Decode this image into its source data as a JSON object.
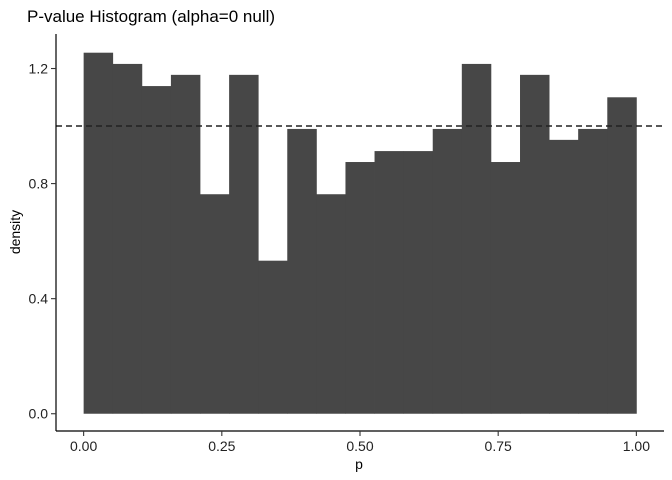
{
  "chart_data": {
    "type": "bar",
    "subtype": "histogram",
    "title": "P-value Histogram (alpha=0 null)",
    "xlabel": "p",
    "ylabel": "density",
    "xlim": [
      -0.05,
      1.05
    ],
    "ylim": [
      -0.06,
      1.32
    ],
    "xticks": [
      0.0,
      0.25,
      0.5,
      0.75,
      1.0
    ],
    "xtick_labels": [
      "0.00",
      "0.25",
      "0.50",
      "0.75",
      "1.00"
    ],
    "yticks": [
      0.0,
      0.4,
      0.8,
      1.2
    ],
    "ytick_labels": [
      "0.0",
      "0.4",
      "0.8",
      "1.2"
    ],
    "bin_edges": [
      0.0,
      0.0526,
      0.1053,
      0.1579,
      0.2105,
      0.2632,
      0.3158,
      0.3684,
      0.4211,
      0.4737,
      0.5263,
      0.5789,
      0.6316,
      0.6842,
      0.7368,
      0.7895,
      0.8421,
      0.8947,
      0.9474,
      1.0
    ],
    "values": [
      1.255,
      1.216,
      1.139,
      1.178,
      0.763,
      1.178,
      0.532,
      0.99,
      0.763,
      0.875,
      0.913,
      0.913,
      0.99,
      1.216,
      0.875,
      1.178,
      0.952,
      0.99,
      1.1
    ],
    "reference_line": {
      "y": 1.0,
      "style": "dashed",
      "color": "#222222"
    },
    "bar_color": "#474747",
    "grid": false,
    "legend": "none"
  }
}
